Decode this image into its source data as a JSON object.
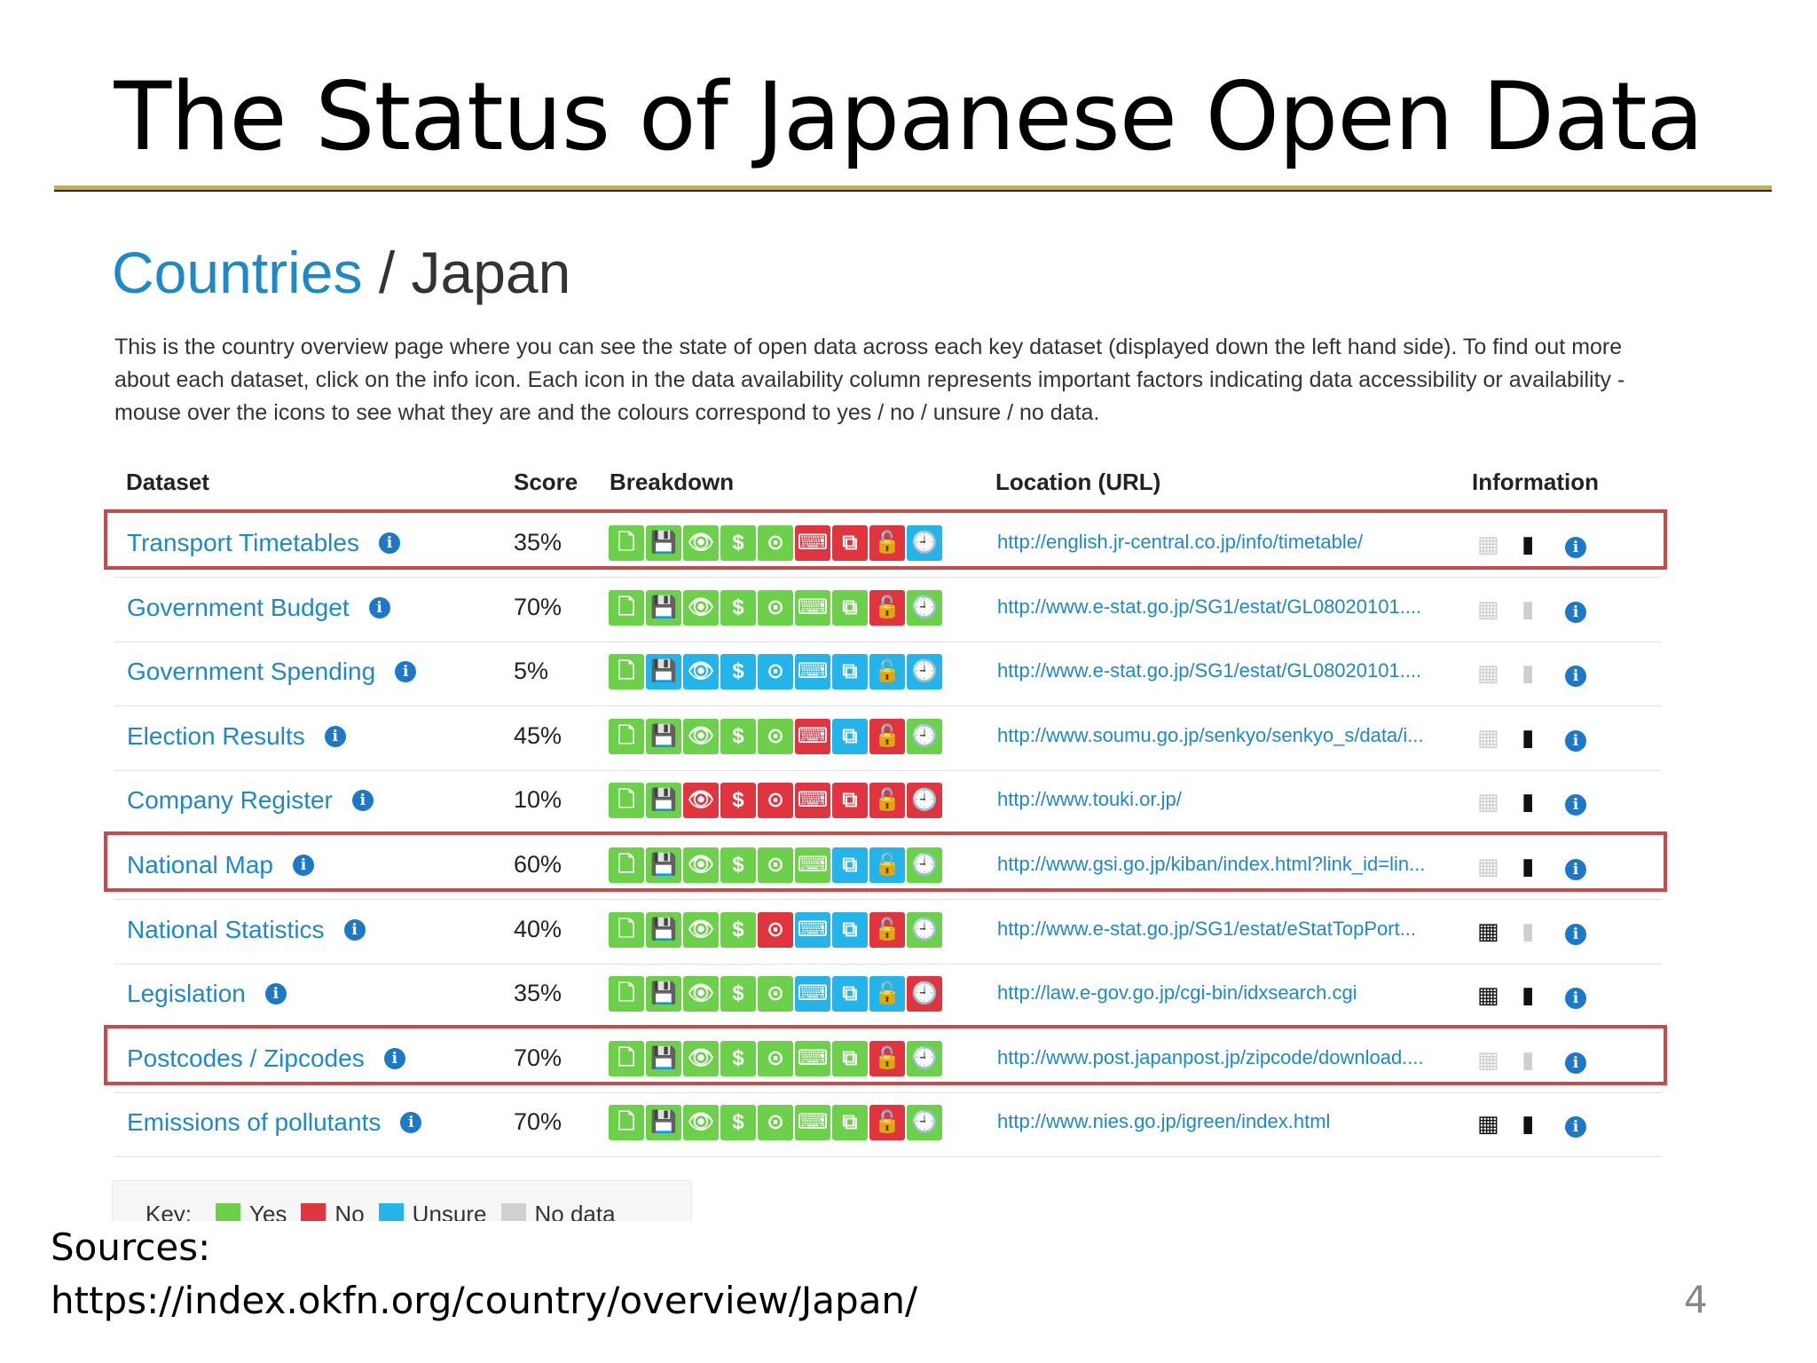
{
  "slide": {
    "title": "The Status of Japanese Open Data",
    "sources_label": "Sources:",
    "sources_url": "https://index.okfn.org/country/overview/Japan/",
    "page_number": "4"
  },
  "page": {
    "breadcrumb": "Countries",
    "separator": "/",
    "country": "Japan",
    "intro": "This is the country overview page where you can see the state of open data across each key dataset (displayed down the left hand side). To find out more about each dataset, click on the info icon. Each icon in the data availability column represents important factors indicating data accessibility or availability - mouse over the icons to see what they are and the colours correspond to yes / no / unsure / no data."
  },
  "table": {
    "headers": {
      "dataset": "Dataset",
      "score": "Score",
      "breakdown": "Breakdown",
      "location": "Location (URL)",
      "information": "Information"
    },
    "breakdown_icon_names": [
      "exists-icon",
      "digital-icon",
      "public-icon",
      "free-icon",
      "online-icon",
      "machine-readable-icon",
      "bulk-icon",
      "open-license-icon",
      "up-to-date-icon"
    ],
    "rows": [
      {
        "name": "Transport Timetables",
        "score": "35%",
        "breakdown": [
          "g",
          "g",
          "g",
          "g",
          "g",
          "r",
          "r",
          "r",
          "b"
        ],
        "url": "http://english.jr-central.co.jp/info/timetable/",
        "info": [
          false,
          true,
          true
        ],
        "highlighted": true
      },
      {
        "name": "Government Budget",
        "score": "70%",
        "breakdown": [
          "g",
          "g",
          "g",
          "g",
          "g",
          "g",
          "g",
          "r",
          "g"
        ],
        "url": "http://www.e-stat.go.jp/SG1/estat/GL08020101....",
        "info": [
          false,
          false,
          true
        ],
        "highlighted": false
      },
      {
        "name": "Government Spending",
        "score": "5%",
        "breakdown": [
          "g",
          "b",
          "b",
          "b",
          "b",
          "b",
          "b",
          "b",
          "b"
        ],
        "url": "http://www.e-stat.go.jp/SG1/estat/GL08020101....",
        "info": [
          false,
          false,
          true
        ],
        "highlighted": false
      },
      {
        "name": "Election Results",
        "score": "45%",
        "breakdown": [
          "g",
          "g",
          "g",
          "g",
          "g",
          "r",
          "b",
          "r",
          "g"
        ],
        "url": "http://www.soumu.go.jp/senkyo/senkyo_s/data/i...",
        "info": [
          false,
          true,
          true
        ],
        "highlighted": false
      },
      {
        "name": "Company Register",
        "score": "10%",
        "breakdown": [
          "g",
          "g",
          "r",
          "r",
          "r",
          "r",
          "r",
          "r",
          "r"
        ],
        "url": "http://www.touki.or.jp/",
        "info": [
          false,
          true,
          true
        ],
        "highlighted": false
      },
      {
        "name": "National Map",
        "score": "60%",
        "breakdown": [
          "g",
          "g",
          "g",
          "g",
          "g",
          "g",
          "b",
          "b",
          "g"
        ],
        "url": "http://www.gsi.go.jp/kiban/index.html?link_id=lin...",
        "info": [
          false,
          true,
          true
        ],
        "highlighted": true
      },
      {
        "name": "National Statistics",
        "score": "40%",
        "breakdown": [
          "g",
          "g",
          "g",
          "g",
          "r",
          "b",
          "b",
          "r",
          "g"
        ],
        "url": "http://www.e-stat.go.jp/SG1/estat/eStatTopPort...",
        "info": [
          true,
          false,
          true
        ],
        "highlighted": false
      },
      {
        "name": "Legislation",
        "score": "35%",
        "breakdown": [
          "g",
          "g",
          "g",
          "g",
          "g",
          "b",
          "b",
          "b",
          "r"
        ],
        "url": "http://law.e-gov.go.jp/cgi-bin/idxsearch.cgi",
        "info": [
          true,
          true,
          true
        ],
        "highlighted": false
      },
      {
        "name": "Postcodes / Zipcodes",
        "score": "70%",
        "breakdown": [
          "g",
          "g",
          "g",
          "g",
          "g",
          "g",
          "g",
          "r",
          "g"
        ],
        "url": "http://www.post.japanpost.jp/zipcode/download....",
        "info": [
          false,
          false,
          true
        ],
        "highlighted": true
      },
      {
        "name": "Emissions of pollutants",
        "score": "70%",
        "breakdown": [
          "g",
          "g",
          "g",
          "g",
          "g",
          "g",
          "g",
          "r",
          "g"
        ],
        "url": "http://www.nies.go.jp/igreen/index.html",
        "info": [
          true,
          true,
          true
        ],
        "highlighted": false
      }
    ]
  },
  "key": {
    "label": "Key:",
    "items": [
      {
        "label": "Yes",
        "color": "#6cd04a"
      },
      {
        "label": "No",
        "color": "#e0343f"
      },
      {
        "label": "Unsure",
        "color": "#24b4ea"
      },
      {
        "label": "No data",
        "color": "#d0d0d0"
      }
    ]
  }
}
